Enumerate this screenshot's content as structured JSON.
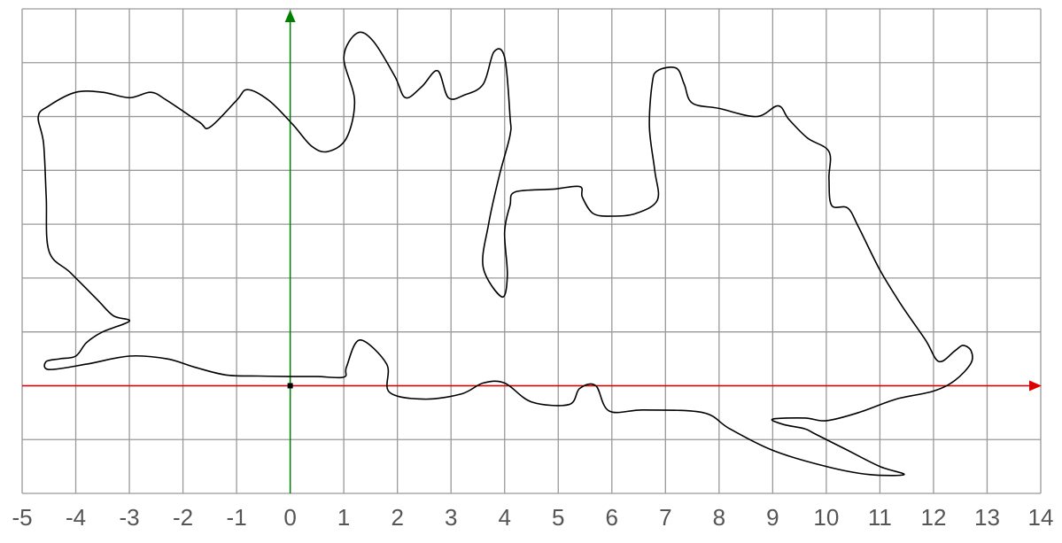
{
  "chart_data": {
    "type": "line",
    "title": "",
    "xlabel": "",
    "ylabel": "",
    "xlim": [
      -5,
      14
    ],
    "ylim": [
      -2,
      7
    ],
    "x_ticks": [
      -5,
      -4,
      -3,
      -2,
      -1,
      0,
      1,
      2,
      3,
      4,
      5,
      6,
      7,
      8,
      9,
      10,
      11,
      12,
      13,
      14
    ],
    "x_tick_labels": [
      "-5",
      "-4",
      "-3",
      "-2",
      "-1",
      "0",
      "1",
      "2",
      "3",
      "4",
      "5",
      "6",
      "7",
      "8",
      "9",
      "10",
      "11",
      "12",
      "13",
      "14"
    ],
    "y_ticks": [
      -2,
      -1,
      0,
      1,
      2,
      3,
      4,
      5,
      6,
      7
    ],
    "grid": true,
    "colors": {
      "grid": "#999999",
      "x_axis": "#dd0000",
      "y_axis": "#008000",
      "curve": "#000000",
      "tick_label": "#555555",
      "origin_marker": "#000000"
    },
    "series": [
      {
        "name": "",
        "points": [
          [
            -0.02,
            0.17
          ],
          [
            0.5,
            0.17
          ],
          [
            1.0,
            0.16
          ],
          [
            1.05,
            0.35
          ],
          [
            1.3,
            0.85
          ],
          [
            1.8,
            0.4
          ],
          [
            1.85,
            -0.12
          ],
          [
            2.5,
            -0.25
          ],
          [
            3.2,
            -0.15
          ],
          [
            3.6,
            0.05
          ],
          [
            4.0,
            0.05
          ],
          [
            4.5,
            -0.3
          ],
          [
            5.2,
            -0.35
          ],
          [
            5.4,
            -0.05
          ],
          [
            5.7,
            0.0
          ],
          [
            5.95,
            -0.47
          ],
          [
            6.6,
            -0.45
          ],
          [
            7.7,
            -0.5
          ],
          [
            8.2,
            -0.8
          ],
          [
            9.0,
            -1.2
          ],
          [
            10.0,
            -1.5
          ],
          [
            10.8,
            -1.65
          ],
          [
            11.45,
            -1.65
          ],
          [
            11.0,
            -1.5
          ],
          [
            10.4,
            -1.2
          ],
          [
            9.8,
            -0.9
          ],
          [
            9.6,
            -0.8
          ],
          [
            9.2,
            -0.72
          ],
          [
            9.0,
            -0.62
          ],
          [
            9.6,
            -0.6
          ],
          [
            10.0,
            -0.65
          ],
          [
            10.6,
            -0.5
          ],
          [
            11.3,
            -0.25
          ],
          [
            12.0,
            -0.1
          ],
          [
            12.4,
            0.1
          ],
          [
            12.7,
            0.42
          ],
          [
            12.7,
            0.65
          ],
          [
            12.55,
            0.75
          ],
          [
            12.4,
            0.65
          ],
          [
            12.1,
            0.45
          ],
          [
            11.85,
            0.85
          ],
          [
            11.4,
            1.5
          ],
          [
            11.0,
            2.15
          ],
          [
            10.6,
            2.95
          ],
          [
            10.4,
            3.3
          ],
          [
            10.1,
            3.35
          ],
          [
            10.05,
            3.85
          ],
          [
            10.05,
            4.35
          ],
          [
            9.65,
            4.6
          ],
          [
            9.3,
            4.95
          ],
          [
            9.1,
            5.2
          ],
          [
            8.7,
            5.0
          ],
          [
            8.0,
            5.15
          ],
          [
            7.5,
            5.25
          ],
          [
            7.35,
            5.6
          ],
          [
            7.2,
            5.9
          ],
          [
            6.85,
            5.85
          ],
          [
            6.75,
            5.6
          ],
          [
            6.7,
            4.8
          ],
          [
            6.8,
            4.0
          ],
          [
            6.85,
            3.45
          ],
          [
            6.45,
            3.2
          ],
          [
            6.0,
            3.15
          ],
          [
            5.65,
            3.2
          ],
          [
            5.45,
            3.5
          ],
          [
            5.4,
            3.7
          ],
          [
            4.9,
            3.65
          ],
          [
            4.2,
            3.6
          ],
          [
            4.1,
            3.35
          ],
          [
            4.0,
            2.85
          ],
          [
            4.05,
            2.05
          ],
          [
            3.95,
            1.65
          ],
          [
            3.6,
            2.2
          ],
          [
            3.7,
            3.0
          ],
          [
            3.9,
            3.9
          ],
          [
            4.1,
            4.65
          ],
          [
            4.1,
            5.0
          ],
          [
            4.0,
            6.1
          ],
          [
            3.8,
            6.2
          ],
          [
            3.6,
            5.6
          ],
          [
            3.25,
            5.4
          ],
          [
            2.95,
            5.35
          ],
          [
            2.75,
            5.85
          ],
          [
            2.45,
            5.55
          ],
          [
            2.15,
            5.35
          ],
          [
            1.95,
            5.75
          ],
          [
            1.55,
            6.4
          ],
          [
            1.25,
            6.55
          ],
          [
            1.0,
            6.1
          ],
          [
            1.2,
            5.3
          ],
          [
            1.05,
            4.6
          ],
          [
            0.7,
            4.35
          ],
          [
            0.4,
            4.45
          ],
          [
            0.05,
            4.85
          ],
          [
            -0.4,
            5.3
          ],
          [
            -0.8,
            5.5
          ],
          [
            -1.0,
            5.3
          ],
          [
            -1.5,
            4.8
          ],
          [
            -1.7,
            4.9
          ],
          [
            -2.3,
            5.3
          ],
          [
            -2.6,
            5.45
          ],
          [
            -3.0,
            5.35
          ],
          [
            -3.5,
            5.45
          ],
          [
            -4.0,
            5.45
          ],
          [
            -4.5,
            5.2
          ],
          [
            -4.7,
            5.0
          ],
          [
            -4.6,
            4.5
          ],
          [
            -4.55,
            3.5
          ],
          [
            -4.5,
            2.5
          ],
          [
            -4.1,
            2.1
          ],
          [
            -3.6,
            1.6
          ],
          [
            -3.3,
            1.3
          ],
          [
            -3.0,
            1.2
          ],
          [
            -3.5,
            1.0
          ],
          [
            -3.8,
            0.8
          ],
          [
            -4.0,
            0.55
          ],
          [
            -4.3,
            0.5
          ],
          [
            -4.55,
            0.45
          ],
          [
            -4.5,
            0.3
          ],
          [
            -3.8,
            0.4
          ],
          [
            -3.0,
            0.55
          ],
          [
            -2.3,
            0.5
          ],
          [
            -1.8,
            0.35
          ],
          [
            -1.2,
            0.2
          ],
          [
            -0.6,
            0.18
          ],
          [
            -0.02,
            0.17
          ]
        ]
      }
    ],
    "origin_marker": [
      0,
      0
    ]
  }
}
